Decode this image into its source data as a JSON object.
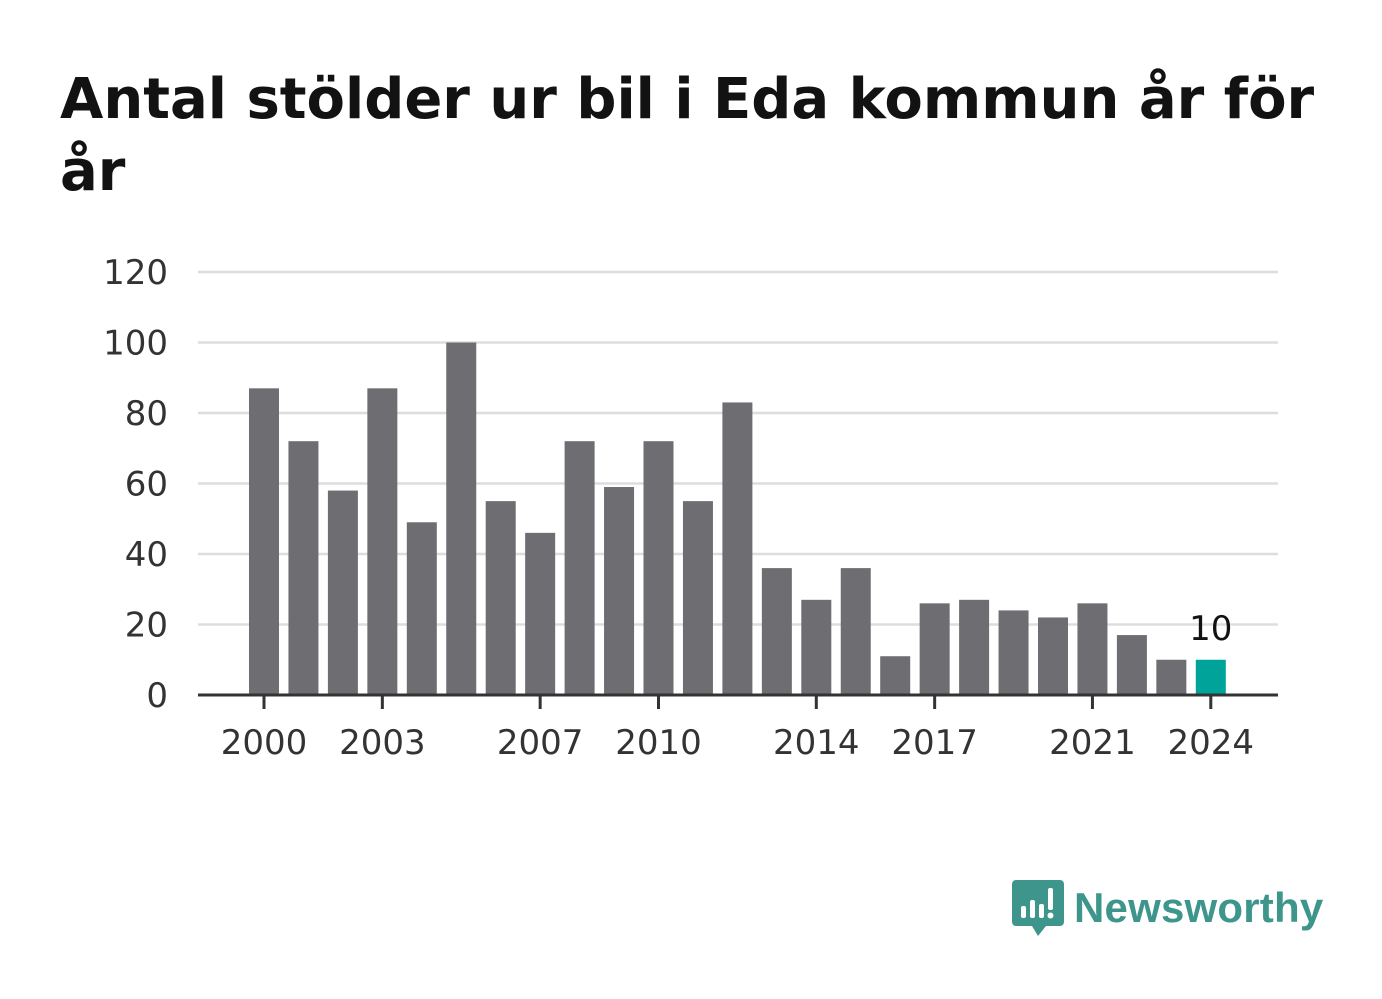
{
  "chart_data": {
    "type": "bar",
    "title": "Antal stölder ur bil i Eda kommun år för år",
    "categories": [
      "2000",
      "2001",
      "2002",
      "2003",
      "2004",
      "2005",
      "2006",
      "2007",
      "2008",
      "2009",
      "2010",
      "2011",
      "2012",
      "2013",
      "2014",
      "2015",
      "2016",
      "2017",
      "2018",
      "2019",
      "2020",
      "2021",
      "2022",
      "2023",
      "2024"
    ],
    "values": [
      87,
      72,
      58,
      87,
      49,
      100,
      55,
      46,
      72,
      59,
      72,
      55,
      83,
      36,
      27,
      36,
      11,
      26,
      27,
      24,
      22,
      26,
      17,
      10,
      10
    ],
    "x_tick_labels": [
      "2000",
      "2003",
      "2007",
      "2010",
      "2014",
      "2017",
      "2021",
      "2024"
    ],
    "y_tick_labels": [
      "0",
      "20",
      "40",
      "60",
      "80",
      "100",
      "120"
    ],
    "ylim": [
      0,
      120
    ],
    "grid": true,
    "highlight": {
      "category": "2024",
      "label": "10"
    },
    "colors": {
      "bar": "#6e6d72",
      "highlight": "#00a39a",
      "grid": "#dddddd",
      "axis": "#333333"
    }
  },
  "brand": {
    "name": "Newsworthy",
    "icon": "newsworthy-logo-icon",
    "color": "#3d958c"
  }
}
